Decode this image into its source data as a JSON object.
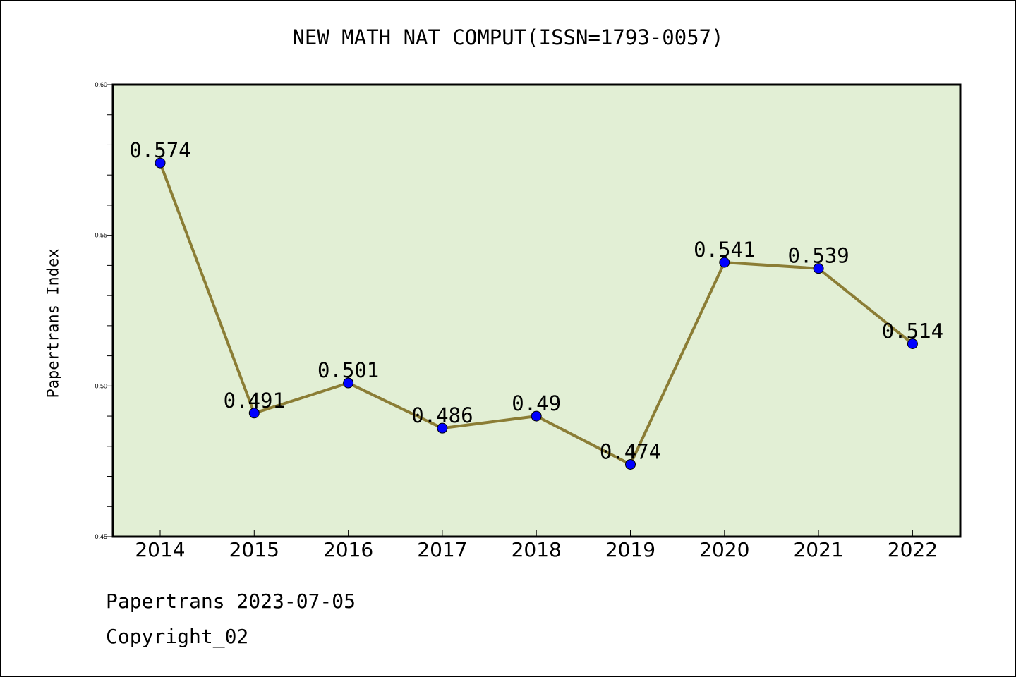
{
  "chart_data": {
    "type": "line",
    "title": "NEW MATH NAT COMPUT(ISSN=1793-0057)",
    "xlabel": "",
    "ylabel": "Papertrans Index",
    "categories": [
      "2014",
      "2015",
      "2016",
      "2017",
      "2018",
      "2019",
      "2020",
      "2021",
      "2022"
    ],
    "series": [
      {
        "values": [
          0.574,
          0.491,
          0.501,
          0.486,
          0.49,
          0.474,
          0.541,
          0.539,
          0.514
        ]
      }
    ],
    "data_labels": [
      "0.574",
      "0.491",
      "0.501",
      "0.486",
      "0.49",
      "0.474",
      "0.541",
      "0.539",
      "0.514"
    ],
    "ylim": [
      0.45,
      0.6
    ],
    "yticks": [
      "0.45",
      "0.50",
      "0.55",
      "0.60"
    ],
    "grid": false,
    "colors": {
      "plot_background": "#e2efd5",
      "line": "#8b7d35",
      "marker": "#0000ff"
    }
  },
  "footer": {
    "source": "Papertrans 2023-07-05",
    "copyright": "Copyright_02"
  }
}
